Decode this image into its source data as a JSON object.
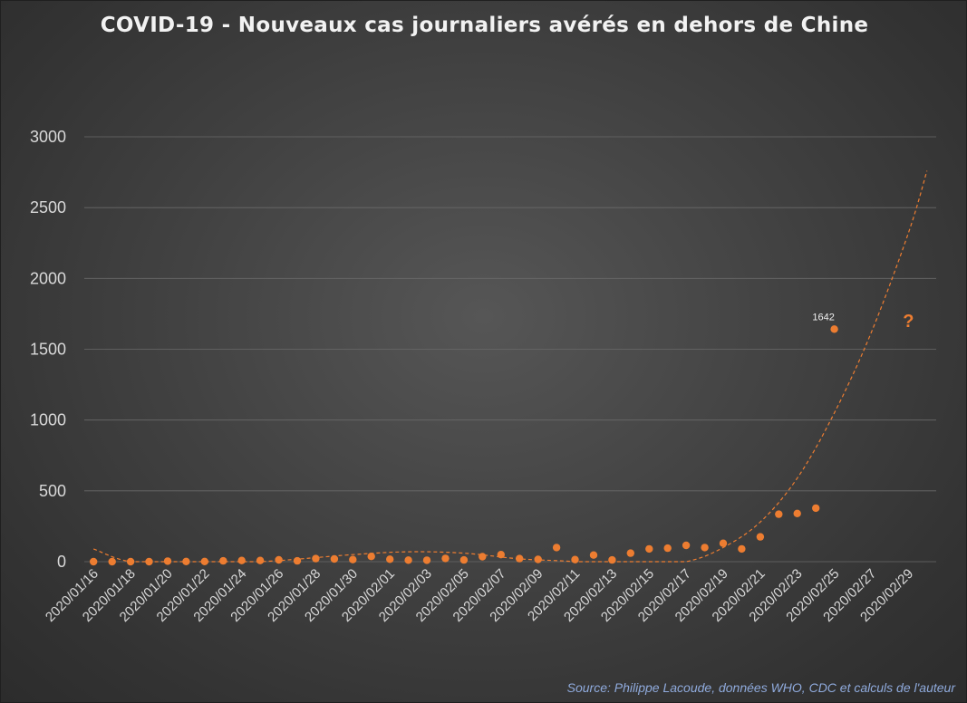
{
  "chart_data": {
    "type": "scatter",
    "title": "COVID-19 - Nouveaux cas journaliers avérés en dehors de Chine",
    "xlabel": "",
    "ylabel": "",
    "ylim": [
      0,
      3000
    ],
    "yticks": [
      "0",
      "500",
      "1000",
      "1500",
      "2000",
      "2500",
      "3000"
    ],
    "ytick_values": [
      0,
      500,
      1000,
      1500,
      2000,
      2500,
      3000
    ],
    "grid": true,
    "x_start": "2020-01-16",
    "x_end": "2020-03-01",
    "xticks": [
      "2020/01/16",
      "2020/01/18",
      "2020/01/20",
      "2020/01/22",
      "2020/01/24",
      "2020/01/26",
      "2020/01/28",
      "2020/01/30",
      "2020/02/01",
      "2020/02/03",
      "2020/02/05",
      "2020/02/07",
      "2020/02/09",
      "2020/02/11",
      "2020/02/13",
      "2020/02/15",
      "2020/02/17",
      "2020/02/19",
      "2020/02/21",
      "2020/02/23",
      "2020/02/25",
      "2020/02/27",
      "2020/02/29"
    ],
    "series": [
      {
        "x": [
          "2020-01-16",
          "2020-01-17",
          "2020-01-18",
          "2020-01-19",
          "2020-01-20",
          "2020-01-21",
          "2020-01-22",
          "2020-01-23",
          "2020-01-24",
          "2020-01-25",
          "2020-01-26",
          "2020-01-27",
          "2020-01-28",
          "2020-01-29",
          "2020-01-30",
          "2020-01-31",
          "2020-02-01",
          "2020-02-02",
          "2020-02-03",
          "2020-02-04",
          "2020-02-05",
          "2020-02-06",
          "2020-02-07",
          "2020-02-08",
          "2020-02-09",
          "2020-02-10",
          "2020-02-11",
          "2020-02-12",
          "2020-02-13",
          "2020-02-14",
          "2020-02-15",
          "2020-02-16",
          "2020-02-17",
          "2020-02-18",
          "2020-02-19",
          "2020-02-20",
          "2020-02-21",
          "2020-02-22",
          "2020-02-23",
          "2020-02-24",
          "2020-02-25",
          "2020-02-26"
        ],
        "values": [
          0,
          0,
          0,
          0,
          4,
          1,
          1,
          6,
          8,
          8,
          13,
          6,
          22,
          19,
          15,
          37,
          17,
          11,
          10,
          23,
          12,
          35,
          50,
          22,
          16,
          100,
          15,
          47,
          12,
          60,
          90,
          95,
          115,
          100,
          130,
          90,
          175,
          335,
          340,
          378,
          1642,
          null
        ]
      }
    ],
    "trendline": {
      "style": "dashed",
      "x": [
        "2020-01-16",
        "2020-01-18",
        "2020-01-21",
        "2020-01-25",
        "2020-01-30",
        "2020-02-02",
        "2020-02-05",
        "2020-02-08",
        "2020-02-11",
        "2020-02-14",
        "2020-02-17",
        "2020-02-19",
        "2020-02-21",
        "2020-02-23",
        "2020-02-25",
        "2020-02-27",
        "2020-02-29",
        "2020-03-01"
      ],
      "values": [
        90,
        0,
        0,
        0,
        50,
        70,
        60,
        20,
        0,
        -40,
        0,
        100,
        280,
        590,
        1050,
        1620,
        2320,
        2760
      ]
    },
    "annotations": [
      {
        "x": "2020-02-25",
        "y": 1642,
        "text": "1642"
      },
      {
        "x": "2020-02-29",
        "y": 1700,
        "text": "?"
      }
    ]
  },
  "source": "Source: Philippe Lacoude, données WHO, CDC et calculs de l'auteur",
  "colors": {
    "series": "#ed7d31",
    "grid": "#6a6a6a",
    "text": "#d9d9d9",
    "source": "#8faadc"
  }
}
